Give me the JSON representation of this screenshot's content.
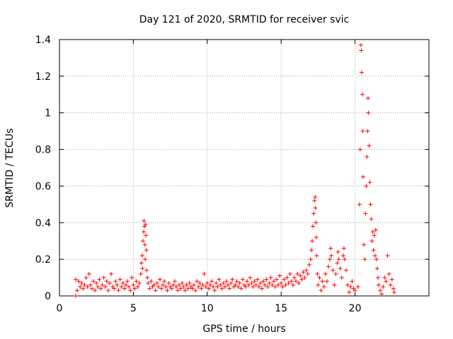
{
  "chart_data": {
    "type": "scatter",
    "title": "Day 121 of 2020, SRMTID for receiver svic",
    "xlabel": "GPS time / hours",
    "ylabel": "SRMTID / TECUs",
    "xlim": [
      0,
      25
    ],
    "ylim": [
      0,
      1.4
    ],
    "x_ticks": [
      0,
      5,
      10,
      15,
      20
    ],
    "x_tick_labels": [
      "0",
      "5",
      "10",
      "15",
      "20"
    ],
    "y_ticks": [
      0,
      0.2,
      0.4,
      0.6,
      0.8,
      1.0,
      1.2,
      1.4
    ],
    "y_tick_labels": [
      "0",
      "0.2",
      "0.4",
      "0.6",
      "0.8",
      "1",
      "1.2",
      "1.4"
    ],
    "grid": true,
    "marker": "+",
    "color": "#ff0000",
    "series": [
      {
        "name": "SRMTID",
        "points": [
          [
            1.1,
            0.0
          ],
          [
            1.1,
            0.09
          ],
          [
            1.2,
            0.03
          ],
          [
            1.3,
            0.08
          ],
          [
            1.4,
            0.05
          ],
          [
            1.5,
            0.07
          ],
          [
            1.6,
            0.04
          ],
          [
            1.7,
            0.06
          ],
          [
            1.8,
            0.1
          ],
          [
            1.9,
            0.05
          ],
          [
            2.0,
            0.12
          ],
          [
            2.1,
            0.06
          ],
          [
            2.2,
            0.04
          ],
          [
            2.3,
            0.08
          ],
          [
            2.4,
            0.03
          ],
          [
            2.5,
            0.07
          ],
          [
            2.6,
            0.05
          ],
          [
            2.7,
            0.09
          ],
          [
            2.8,
            0.04
          ],
          [
            2.9,
            0.06
          ],
          [
            3.0,
            0.1
          ],
          [
            3.1,
            0.05
          ],
          [
            3.2,
            0.08
          ],
          [
            3.3,
            0.03
          ],
          [
            3.4,
            0.07
          ],
          [
            3.5,
            0.12
          ],
          [
            3.6,
            0.05
          ],
          [
            3.7,
            0.04
          ],
          [
            3.8,
            0.08
          ],
          [
            3.9,
            0.06
          ],
          [
            4.0,
            0.03
          ],
          [
            4.1,
            0.09
          ],
          [
            4.2,
            0.05
          ],
          [
            4.3,
            0.07
          ],
          [
            4.4,
            0.04
          ],
          [
            4.5,
            0.06
          ],
          [
            4.6,
            0.08
          ],
          [
            4.7,
            0.05
          ],
          [
            4.8,
            0.03
          ],
          [
            4.9,
            0.1
          ],
          [
            5.0,
            0.06
          ],
          [
            5.1,
            0.04
          ],
          [
            5.2,
            0.08
          ],
          [
            5.3,
            0.05
          ],
          [
            5.4,
            0.07
          ],
          [
            5.5,
            0.12
          ],
          [
            5.55,
            0.18
          ],
          [
            5.6,
            0.22
          ],
          [
            5.62,
            0.15
          ],
          [
            5.65,
            0.3
          ],
          [
            5.7,
            0.35
          ],
          [
            5.72,
            0.41
          ],
          [
            5.75,
            0.38
          ],
          [
            5.78,
            0.28
          ],
          [
            5.8,
            0.2
          ],
          [
            5.82,
            0.39
          ],
          [
            5.85,
            0.33
          ],
          [
            5.88,
            0.25
          ],
          [
            5.9,
            0.14
          ],
          [
            5.95,
            0.1
          ],
          [
            6.0,
            0.07
          ],
          [
            6.1,
            0.04
          ],
          [
            6.2,
            0.08
          ],
          [
            6.3,
            0.05
          ],
          [
            6.4,
            0.06
          ],
          [
            6.5,
            0.03
          ],
          [
            6.6,
            0.07
          ],
          [
            6.7,
            0.05
          ],
          [
            6.8,
            0.09
          ],
          [
            6.9,
            0.04
          ],
          [
            7.0,
            0.06
          ],
          [
            7.1,
            0.08
          ],
          [
            7.2,
            0.05
          ],
          [
            7.3,
            0.03
          ],
          [
            7.4,
            0.07
          ],
          [
            7.5,
            0.05
          ],
          [
            7.6,
            0.04
          ],
          [
            7.7,
            0.06
          ],
          [
            7.8,
            0.08
          ],
          [
            7.9,
            0.05
          ],
          [
            8.0,
            0.03
          ],
          [
            8.1,
            0.06
          ],
          [
            8.2,
            0.04
          ],
          [
            8.3,
            0.07
          ],
          [
            8.4,
            0.05
          ],
          [
            8.5,
            0.03
          ],
          [
            8.6,
            0.06
          ],
          [
            8.7,
            0.04
          ],
          [
            8.8,
            0.07
          ],
          [
            8.9,
            0.05
          ],
          [
            9.0,
            0.04
          ],
          [
            9.1,
            0.06
          ],
          [
            9.2,
            0.03
          ],
          [
            9.3,
            0.08
          ],
          [
            9.4,
            0.05
          ],
          [
            9.5,
            0.07
          ],
          [
            9.6,
            0.04
          ],
          [
            9.7,
            0.06
          ],
          [
            9.8,
            0.12
          ],
          [
            9.9,
            0.05
          ],
          [
            10.0,
            0.07
          ],
          [
            10.1,
            0.04
          ],
          [
            10.2,
            0.06
          ],
          [
            10.3,
            0.08
          ],
          [
            10.4,
            0.05
          ],
          [
            10.5,
            0.03
          ],
          [
            10.6,
            0.07
          ],
          [
            10.7,
            0.05
          ],
          [
            10.8,
            0.09
          ],
          [
            10.9,
            0.06
          ],
          [
            11.0,
            0.04
          ],
          [
            11.1,
            0.07
          ],
          [
            11.2,
            0.05
          ],
          [
            11.3,
            0.08
          ],
          [
            11.4,
            0.06
          ],
          [
            11.5,
            0.04
          ],
          [
            11.6,
            0.07
          ],
          [
            11.7,
            0.09
          ],
          [
            11.8,
            0.05
          ],
          [
            11.9,
            0.06
          ],
          [
            12.0,
            0.08
          ],
          [
            12.1,
            0.05
          ],
          [
            12.2,
            0.07
          ],
          [
            12.3,
            0.04
          ],
          [
            12.4,
            0.09
          ],
          [
            12.5,
            0.06
          ],
          [
            12.6,
            0.05
          ],
          [
            12.7,
            0.08
          ],
          [
            12.8,
            0.06
          ],
          [
            12.9,
            0.1
          ],
          [
            13.0,
            0.07
          ],
          [
            13.1,
            0.05
          ],
          [
            13.2,
            0.08
          ],
          [
            13.3,
            0.06
          ],
          [
            13.4,
            0.09
          ],
          [
            13.5,
            0.05
          ],
          [
            13.6,
            0.07
          ],
          [
            13.7,
            0.04
          ],
          [
            13.8,
            0.08
          ],
          [
            13.9,
            0.06
          ],
          [
            14.0,
            0.09
          ],
          [
            14.1,
            0.05
          ],
          [
            14.2,
            0.07
          ],
          [
            14.3,
            0.1
          ],
          [
            14.4,
            0.06
          ],
          [
            14.5,
            0.08
          ],
          [
            14.6,
            0.05
          ],
          [
            14.7,
            0.09
          ],
          [
            14.8,
            0.06
          ],
          [
            14.9,
            0.11
          ],
          [
            15.0,
            0.07
          ],
          [
            15.1,
            0.05
          ],
          [
            15.2,
            0.09
          ],
          [
            15.3,
            0.06
          ],
          [
            15.4,
            0.1
          ],
          [
            15.5,
            0.07
          ],
          [
            15.6,
            0.12
          ],
          [
            15.7,
            0.08
          ],
          [
            15.8,
            0.06
          ],
          [
            15.9,
            0.1
          ],
          [
            16.0,
            0.08
          ],
          [
            16.1,
            0.12
          ],
          [
            16.2,
            0.07
          ],
          [
            16.3,
            0.11
          ],
          [
            16.4,
            0.09
          ],
          [
            16.5,
            0.13
          ],
          [
            16.6,
            0.1
          ],
          [
            16.7,
            0.14
          ],
          [
            16.8,
            0.12
          ],
          [
            16.9,
            0.17
          ],
          [
            17.0,
            0.2
          ],
          [
            17.05,
            0.25
          ],
          [
            17.1,
            0.3
          ],
          [
            17.15,
            0.38
          ],
          [
            17.2,
            0.45
          ],
          [
            17.25,
            0.52
          ],
          [
            17.3,
            0.54
          ],
          [
            17.32,
            0.48
          ],
          [
            17.35,
            0.4
          ],
          [
            17.38,
            0.32
          ],
          [
            17.4,
            0.22
          ],
          [
            17.45,
            0.12
          ],
          [
            17.5,
            0.06
          ],
          [
            17.6,
            0.1
          ],
          [
            17.7,
            0.03
          ],
          [
            17.8,
            0.08
          ],
          [
            17.9,
            0.05
          ],
          [
            18.0,
            0.12
          ],
          [
            18.1,
            0.08
          ],
          [
            18.2,
            0.16
          ],
          [
            18.3,
            0.2
          ],
          [
            18.35,
            0.26
          ],
          [
            18.4,
            0.22
          ],
          [
            18.5,
            0.14
          ],
          [
            18.6,
            0.06
          ],
          [
            18.7,
            0.12
          ],
          [
            18.8,
            0.18
          ],
          [
            18.85,
            0.24
          ],
          [
            18.9,
            0.2
          ],
          [
            19.0,
            0.15
          ],
          [
            19.1,
            0.1
          ],
          [
            19.2,
            0.22
          ],
          [
            19.25,
            0.26
          ],
          [
            19.3,
            0.2
          ],
          [
            19.4,
            0.14
          ],
          [
            19.5,
            0.06
          ],
          [
            19.6,
            0.02
          ],
          [
            19.7,
            0.05
          ],
          [
            19.8,
            0.08
          ],
          [
            19.9,
            0.04
          ],
          [
            20.0,
            0.03
          ],
          [
            20.2,
            0.05
          ],
          [
            20.3,
            0.5
          ],
          [
            20.35,
            0.8
          ],
          [
            20.4,
            1.37
          ],
          [
            20.42,
            1.34
          ],
          [
            20.45,
            1.22
          ],
          [
            20.5,
            1.1
          ],
          [
            20.52,
            0.9
          ],
          [
            20.55,
            0.65
          ],
          [
            20.6,
            0.28
          ],
          [
            20.65,
            0.2
          ],
          [
            20.7,
            0.45
          ],
          [
            20.75,
            0.6
          ],
          [
            20.8,
            0.76
          ],
          [
            20.85,
            0.9
          ],
          [
            20.88,
            1.08
          ],
          [
            20.9,
            1.0
          ],
          [
            20.95,
            0.82
          ],
          [
            21.0,
            0.62
          ],
          [
            21.05,
            0.5
          ],
          [
            21.1,
            0.42
          ],
          [
            21.15,
            0.3
          ],
          [
            21.2,
            0.35
          ],
          [
            21.25,
            0.25
          ],
          [
            21.3,
            0.33
          ],
          [
            21.35,
            0.22
          ],
          [
            21.4,
            0.36
          ],
          [
            21.45,
            0.2
          ],
          [
            21.5,
            0.15
          ],
          [
            21.55,
            0.1
          ],
          [
            21.6,
            0.06
          ],
          [
            21.7,
            0.03
          ],
          [
            21.8,
            0.01
          ],
          [
            21.9,
            0.05
          ],
          [
            22.0,
            0.1
          ],
          [
            22.1,
            0.08
          ],
          [
            22.2,
            0.22
          ],
          [
            22.3,
            0.12
          ],
          [
            22.4,
            0.06
          ],
          [
            22.5,
            0.09
          ],
          [
            22.6,
            0.04
          ],
          [
            22.65,
            0.02
          ]
        ]
      }
    ]
  }
}
